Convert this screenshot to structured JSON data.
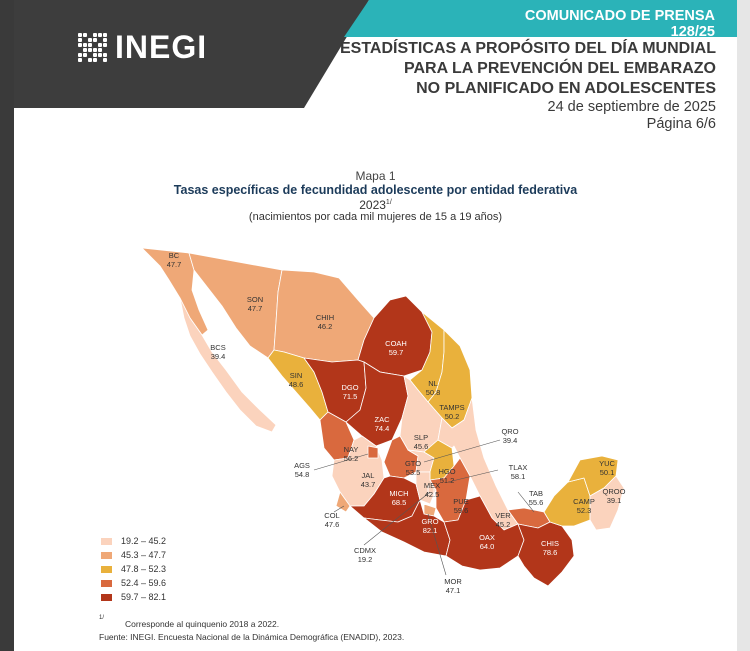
{
  "header": {
    "logo_text": "INEGI",
    "comunicado": "COMUNICADO DE PRENSA 128/25",
    "title_line1": "ESTADÍSTICAS A PROPÓSITO DEL DÍA MUNDIAL",
    "title_line2": "PARA LA PREVENCIÓN DEL EMBARAZO",
    "title_line3": "NO PLANIFICADO EN ADOLESCENTES",
    "fecha": "24 de septiembre de 2025",
    "pagina": "Página 6/6",
    "colors": {
      "dark": "#3d3d3d",
      "teal": "#2bb3b8"
    }
  },
  "map": {
    "label": "Mapa 1",
    "title": "Tasas específicas de fecundidad adolescente por entidad federativa",
    "year": "2023",
    "year_note": "1/",
    "units": "(nacimientos por cada mil mujeres de 15 a 19 años)",
    "states": [
      {
        "code": "BC",
        "value": "47.7"
      },
      {
        "code": "BCS",
        "value": "39.4"
      },
      {
        "code": "SON",
        "value": "47.7"
      },
      {
        "code": "CHIH",
        "value": "46.2"
      },
      {
        "code": "COAH",
        "value": "59.7"
      },
      {
        "code": "SIN",
        "value": "48.6"
      },
      {
        "code": "DGO",
        "value": "71.5"
      },
      {
        "code": "NL",
        "value": "50.8"
      },
      {
        "code": "TAMPS",
        "value": "50.2"
      },
      {
        "code": "ZAC",
        "value": "74.4"
      },
      {
        "code": "NAY",
        "value": "56.2"
      },
      {
        "code": "SLP",
        "value": "45.6"
      },
      {
        "code": "QRO",
        "value": "39.4"
      },
      {
        "code": "AGS",
        "value": "54.8"
      },
      {
        "code": "GTO",
        "value": "53.5"
      },
      {
        "code": "HGO",
        "value": "51.2"
      },
      {
        "code": "JAL",
        "value": "43.7"
      },
      {
        "code": "TLAX",
        "value": "58.1"
      },
      {
        "code": "MEX",
        "value": "42.5"
      },
      {
        "code": "PUE",
        "value": "59.6"
      },
      {
        "code": "TAB",
        "value": "55.6"
      },
      {
        "code": "YUC",
        "value": "50.1"
      },
      {
        "code": "MICH",
        "value": "68.5"
      },
      {
        "code": "VER",
        "value": "45.2"
      },
      {
        "code": "CAMP",
        "value": "52.3"
      },
      {
        "code": "QROO",
        "value": "39.1"
      },
      {
        "code": "COL",
        "value": "47.6"
      },
      {
        "code": "GRO",
        "value": "82.1"
      },
      {
        "code": "OAX",
        "value": "64.0"
      },
      {
        "code": "CHIS",
        "value": "78.6"
      },
      {
        "code": "CDMX",
        "value": "19.2"
      },
      {
        "code": "MOR",
        "value": "47.1"
      }
    ],
    "legend": [
      {
        "range": "19.2 – 45.2",
        "color": "#fbd3bd"
      },
      {
        "range": "45.3 – 47.7",
        "color": "#efa877"
      },
      {
        "range": "47.8 – 52.3",
        "color": "#e9b13c"
      },
      {
        "range": "52.4 – 59.6",
        "color": "#d9693e"
      },
      {
        "range": "59.7 – 82.1",
        "color": "#b2361a"
      }
    ]
  },
  "footnotes": {
    "note_mark": "1/",
    "note_text": "Corresponde al quinquenio 2018 a 2022.",
    "source": "Fuente: INEGI. Encuesta Nacional de la Dinámica Demográfica (ENADID), 2023."
  }
}
